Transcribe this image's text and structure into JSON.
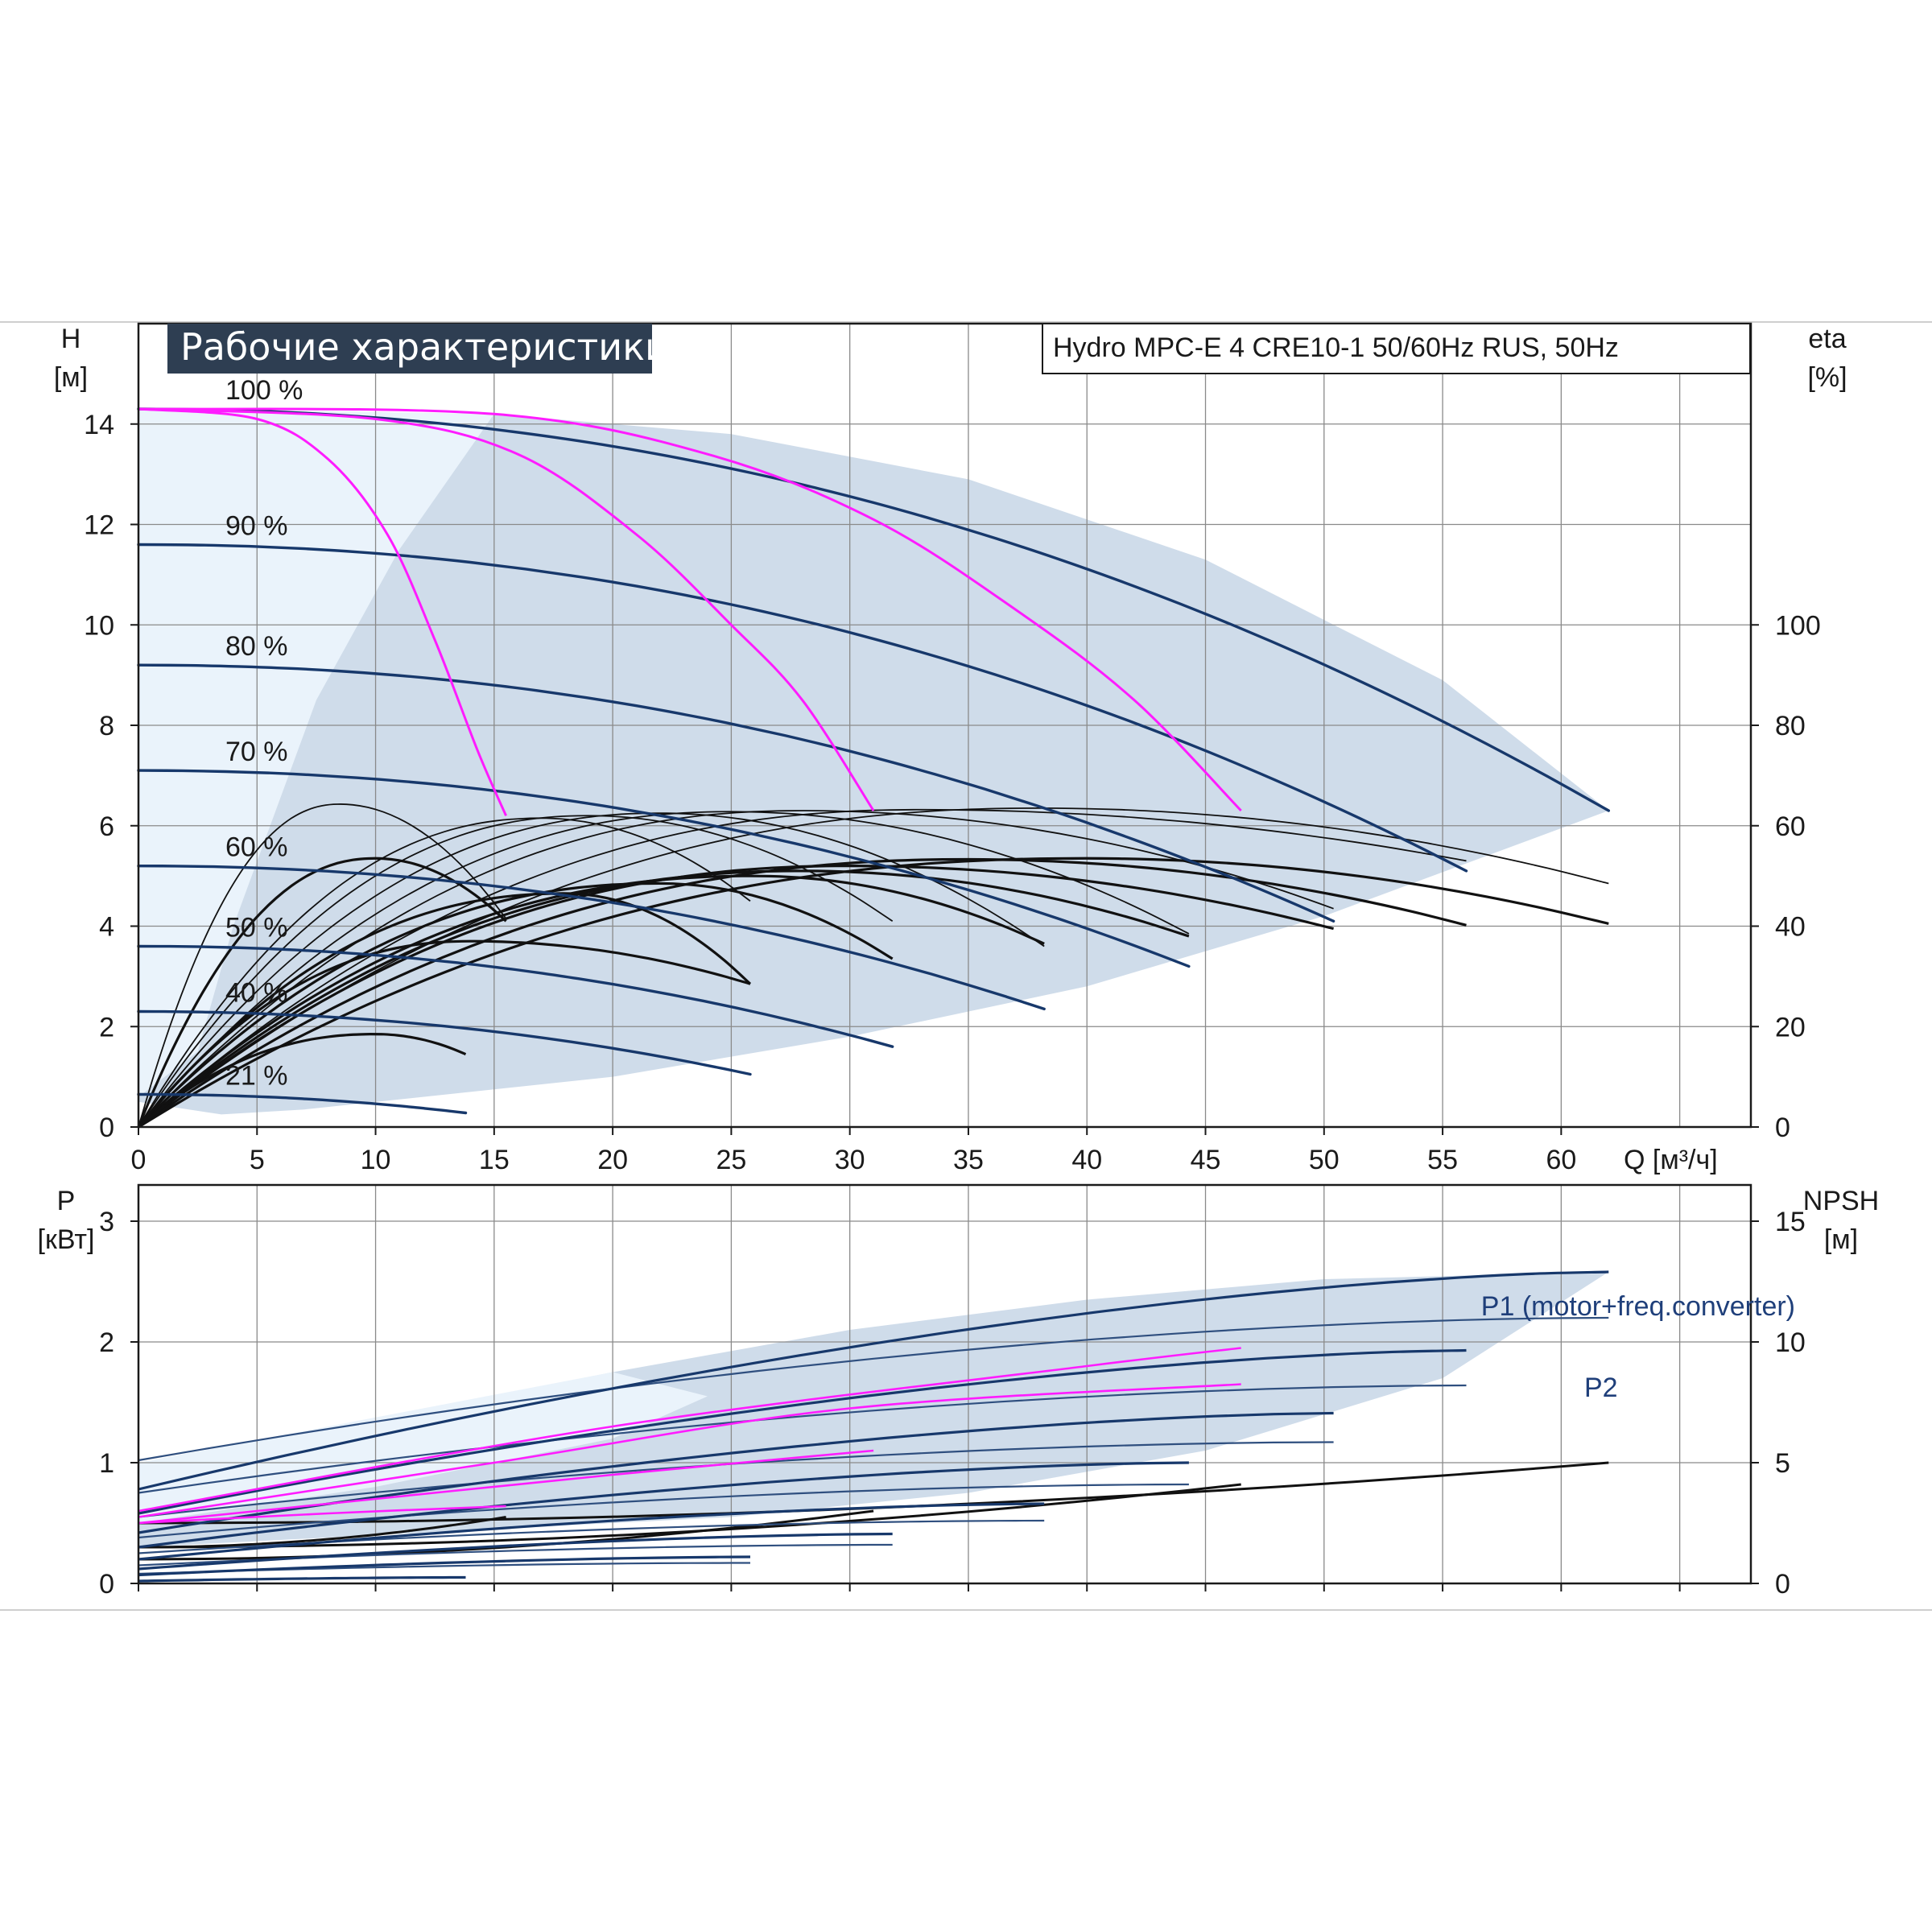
{
  "page": {
    "title": "Рабочие характеристики",
    "model": "Hydro MPC-E 4 CRE10-1 50/60Hz RUS, 50Hz"
  },
  "colors": {
    "envelope_fill": "#cfdcea",
    "light_fill": "#eaf3fb",
    "speed_curve": "#17386b",
    "system_curve": "#ff1cff",
    "efficiency_curve": "#111111",
    "p2_curve": "#2f4f7f"
  },
  "chart_data": [
    {
      "type": "line",
      "name": "head-curves",
      "xlabel": "Q [м³/ч]",
      "ylabel_unit": "[м]",
      "ylabel_name": "H",
      "y2label_name": "eta",
      "y2label_unit": "[%]",
      "xlim": [
        0,
        68
      ],
      "ylim": [
        0,
        16
      ],
      "y2lim": [
        0,
        160
      ],
      "x_ticks": [
        "0",
        "5",
        "10",
        "15",
        "20",
        "25",
        "30",
        "35",
        "40",
        "45",
        "50",
        "55",
        "60"
      ],
      "y_ticks": [
        "0",
        "2",
        "4",
        "6",
        "8",
        "10",
        "12",
        "14"
      ],
      "y2_ticks": [
        "0",
        "20",
        "40",
        "60",
        "80",
        "100"
      ],
      "speed_labels": [
        "100 %",
        "90 %",
        "80 %",
        "70 %",
        "60 %",
        "50 %",
        "40 %",
        "21 %"
      ],
      "grid": true,
      "envelope": {
        "upper": [
          [
            0,
            14.3
          ],
          [
            8,
            14.25
          ],
          [
            15,
            14.2
          ],
          [
            25,
            13.8
          ],
          [
            35,
            12.9
          ],
          [
            45,
            11.3
          ],
          [
            55,
            8.9
          ],
          [
            62,
            6.3
          ]
        ],
        "lower": [
          [
            62,
            6.3
          ],
          [
            50,
            4.2
          ],
          [
            40,
            2.8
          ],
          [
            30,
            1.8
          ],
          [
            20,
            1.0
          ],
          [
            12,
            0.6
          ],
          [
            7,
            0.35
          ],
          [
            3.5,
            0.25
          ],
          [
            0,
            0.5
          ]
        ]
      },
      "light_region": [
        [
          0,
          14.3
        ],
        [
          15,
          14.2
        ],
        [
          11,
          11.5
        ],
        [
          7.5,
          8.5
        ],
        [
          4,
          4
        ],
        [
          2.5,
          1.5
        ],
        [
          0,
          0.6
        ]
      ],
      "speed_curves": [
        {
          "speed_pct": 100,
          "q_end": 62,
          "h0": 14.3,
          "h_end": 6.3
        },
        {
          "speed_pct": 90,
          "q_end": 56,
          "h0": 11.6,
          "h_end": 5.1
        },
        {
          "speed_pct": 80,
          "q_end": 50.4,
          "h0": 9.2,
          "h_end": 4.1
        },
        {
          "speed_pct": 70,
          "q_end": 44.3,
          "h0": 7.1,
          "h_end": 3.2
        },
        {
          "speed_pct": 60,
          "q_end": 38.2,
          "h0": 5.2,
          "h_end": 2.35
        },
        {
          "speed_pct": 50,
          "q_end": 31.8,
          "h0": 3.6,
          "h_end": 1.6
        },
        {
          "speed_pct": 40,
          "q_end": 25.8,
          "h0": 2.3,
          "h_end": 1.05
        },
        {
          "speed_pct": 21,
          "q_end": 13.8,
          "h0": 0.65,
          "h_end": 0.28
        }
      ],
      "system_curves": [
        [
          [
            0,
            14.3
          ],
          [
            5,
            14.1
          ],
          [
            8,
            13.3
          ],
          [
            10.5,
            11.8
          ],
          [
            12.5,
            9.7
          ],
          [
            14.3,
            7.5
          ],
          [
            15.5,
            6.2
          ]
        ],
        [
          [
            0,
            14.3
          ],
          [
            10,
            14.1
          ],
          [
            16,
            13.4
          ],
          [
            21,
            11.8
          ],
          [
            25,
            10
          ],
          [
            28,
            8.5
          ],
          [
            31,
            6.3
          ]
        ],
        [
          [
            0,
            14.3
          ],
          [
            15,
            14.2
          ],
          [
            24,
            13.4
          ],
          [
            31,
            12.1
          ],
          [
            37,
            10.3
          ],
          [
            42,
            8.5
          ],
          [
            46.5,
            6.3
          ]
        ]
      ],
      "efficiency_curves": [
        {
          "q_end": 62,
          "q_peak": 38,
          "peak": 63.5,
          "end": 48.5
        },
        {
          "q_end": 56,
          "q_peak": 33,
          "peak": 63.2,
          "end": 53
        },
        {
          "q_end": 50.4,
          "q_peak": 28,
          "peak": 63,
          "end": 43.5
        },
        {
          "q_end": 44.3,
          "q_peak": 25,
          "peak": 62.8,
          "end": 38.5
        },
        {
          "q_end": 38.2,
          "q_peak": 22,
          "peak": 62.5,
          "end": 36
        },
        {
          "q_end": 31.8,
          "q_peak": 19,
          "peak": 62,
          "end": 41
        },
        {
          "q_end": 25.8,
          "q_peak": 17,
          "peak": 61.5,
          "end": 45
        },
        {
          "q_end": 15.5,
          "q_peak": 8.5,
          "peak": 64.3,
          "end": 41.5
        },
        {
          "q_end": 62,
          "q_peak": 40,
          "peak": 53.5,
          "end": 40.5
        },
        {
          "q_end": 56,
          "q_peak": 35,
          "peak": 53.3,
          "end": 40.2
        },
        {
          "q_end": 50.4,
          "q_peak": 30,
          "peak": 52,
          "end": 39.5
        },
        {
          "q_end": 44.3,
          "q_peak": 28,
          "peak": 51,
          "end": 38
        },
        {
          "q_end": 38.2,
          "q_peak": 26,
          "peak": 50,
          "end": 36.5
        },
        {
          "q_end": 31.8,
          "q_peak": 22,
          "peak": 48.5,
          "end": 33.5
        },
        {
          "q_end": 25.8,
          "q_peak": 18,
          "peak": 46.5,
          "end": 28.5
        },
        {
          "q_end": 15.5,
          "q_peak": 10,
          "peak": 53.5,
          "end": 41
        },
        {
          "q_end": 25.8,
          "q_peak": 14,
          "peak": 37,
          "end": 28.5
        },
        {
          "q_end": 13.8,
          "q_peak": 10,
          "peak": 18.5,
          "end": 14.5
        }
      ]
    },
    {
      "type": "line",
      "name": "power-curves",
      "xlim": [
        0,
        68
      ],
      "ylabel_name": "P",
      "ylabel_unit": "[кВт]",
      "y2label_name": "NPSH",
      "y2label_unit": "[м]",
      "ylim": [
        0,
        3.3
      ],
      "y2lim": [
        0,
        16.5
      ],
      "y_ticks": [
        "0",
        "1",
        "2",
        "3"
      ],
      "y2_ticks": [
        "0",
        "5",
        "10",
        "15"
      ],
      "series_labels": [
        "P1 (motor+freq.converter)",
        "P2"
      ],
      "grid": true,
      "envelope": {
        "upper": [
          [
            0,
            1.0
          ],
          [
            10,
            1.35
          ],
          [
            20,
            1.75
          ],
          [
            30,
            2.1
          ],
          [
            40,
            2.35
          ],
          [
            50,
            2.52
          ],
          [
            62,
            2.58
          ]
        ],
        "lower": [
          [
            62,
            2.58
          ],
          [
            55,
            1.7
          ],
          [
            45,
            1.1
          ],
          [
            35,
            0.75
          ],
          [
            25,
            0.55
          ],
          [
            15,
            0.45
          ],
          [
            5,
            0.35
          ],
          [
            0,
            0.3
          ]
        ]
      },
      "light_region": [
        [
          0,
          1.0
        ],
        [
          20,
          1.75
        ],
        [
          24,
          1.55
        ],
        [
          20,
          1.2
        ],
        [
          10,
          0.8
        ],
        [
          0,
          0.5
        ]
      ],
      "p1_curves": [
        {
          "q_end": 62,
          "p0": 0.78,
          "p_end": 2.58
        },
        {
          "q_end": 56,
          "p0": 0.58,
          "p_end": 1.93
        },
        {
          "q_end": 50.4,
          "p0": 0.42,
          "p_end": 1.41
        },
        {
          "q_end": 44.3,
          "p0": 0.3,
          "p_end": 1.0
        },
        {
          "q_end": 38.2,
          "p0": 0.2,
          "p_end": 0.66
        },
        {
          "q_end": 31.8,
          "p0": 0.12,
          "p_end": 0.41
        },
        {
          "q_end": 25.8,
          "p0": 0.07,
          "p_end": 0.22
        },
        {
          "q_end": 13.8,
          "p0": 0.02,
          "p_end": 0.05
        }
      ],
      "p2_curves": [
        {
          "q_end": 62,
          "p0": 1.02,
          "p_end": 2.2
        },
        {
          "q_end": 56,
          "p0": 0.75,
          "p_end": 1.64
        },
        {
          "q_end": 50.4,
          "p0": 0.55,
          "p_end": 1.17
        },
        {
          "q_end": 44.3,
          "p0": 0.38,
          "p_end": 0.82
        },
        {
          "q_end": 38.2,
          "p0": 0.25,
          "p_end": 0.52
        },
        {
          "q_end": 31.8,
          "p0": 0.15,
          "p_end": 0.32
        },
        {
          "q_end": 25.8,
          "p0": 0.08,
          "p_end": 0.17
        }
      ],
      "system_p_curves": [
        [
          [
            0,
            0.5
          ],
          [
            8,
            0.58
          ],
          [
            15.5,
            0.64
          ]
        ],
        [
          [
            0,
            0.5
          ],
          [
            10,
            0.7
          ],
          [
            20,
            0.9
          ],
          [
            31,
            1.1
          ]
        ],
        [
          [
            0,
            0.55
          ],
          [
            15,
            1.0
          ],
          [
            30,
            1.45
          ],
          [
            46.5,
            1.65
          ]
        ],
        [
          [
            0,
            0.6
          ],
          [
            20,
            1.3
          ],
          [
            40,
            1.8
          ],
          [
            46.5,
            1.95
          ]
        ]
      ],
      "npsh_curves": [
        {
          "q_end": 62,
          "n0": 0.5,
          "n_end": 1.0
        },
        {
          "q_end": 46.5,
          "n0": 0.3,
          "n_end": 0.82
        },
        {
          "q_end": 31,
          "n0": 0.2,
          "n_end": 0.6
        },
        {
          "q_end": 15.5,
          "n0": 0.3,
          "n_end": 0.55
        }
      ]
    }
  ]
}
